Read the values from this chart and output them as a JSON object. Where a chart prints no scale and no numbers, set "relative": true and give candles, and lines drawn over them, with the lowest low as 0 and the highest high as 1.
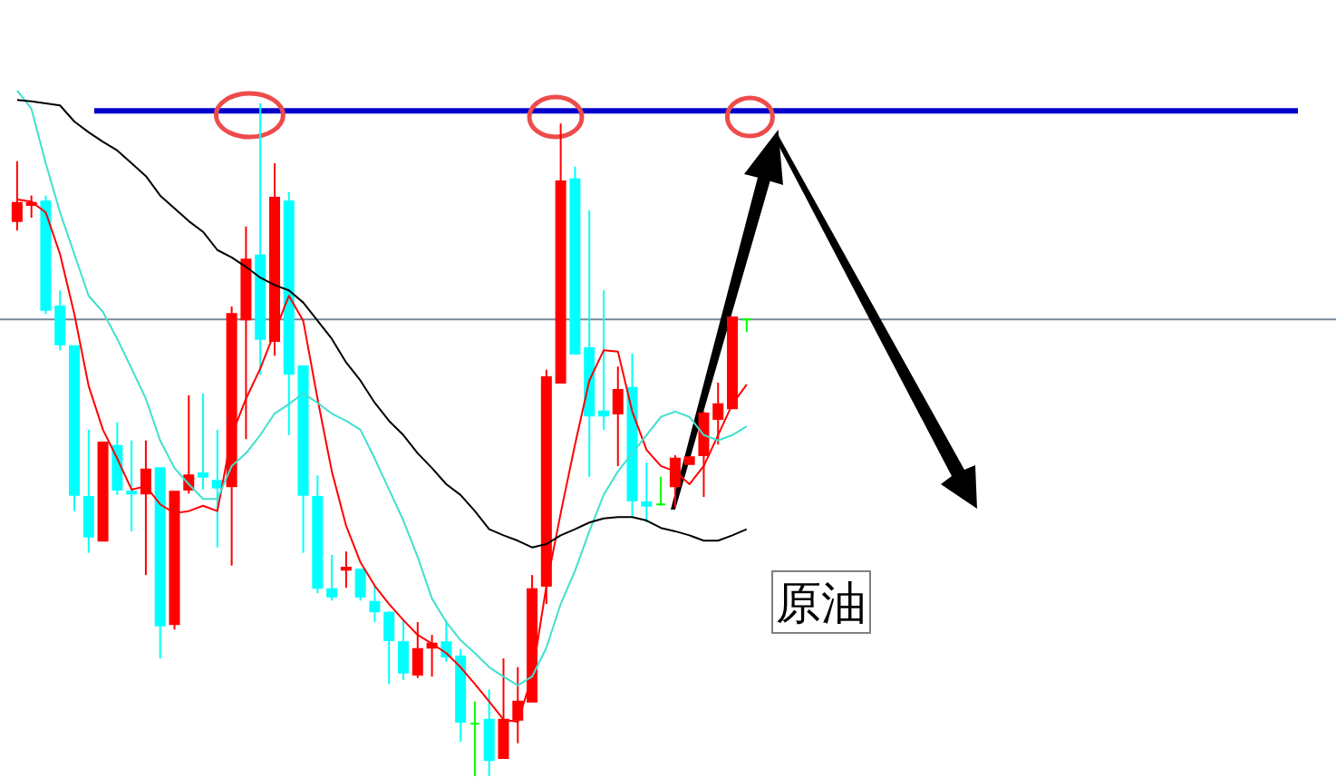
{
  "chart_data": {
    "type": "candlestick",
    "relative": true,
    "categories": [
      null,
      null,
      null,
      null,
      null,
      null,
      null,
      null,
      null,
      null,
      null,
      null,
      null,
      null,
      null,
      null,
      null,
      null,
      null,
      null,
      null,
      null,
      null,
      null,
      null,
      null,
      null,
      null,
      null,
      null,
      null,
      null,
      null,
      null,
      null,
      null,
      null,
      null,
      null,
      null,
      null,
      null,
      null,
      null,
      null,
      null,
      null,
      null,
      null,
      null,
      null,
      null
    ],
    "ohlc": [
      [
        0.825,
        0.914,
        0.811,
        0.852
      ],
      [
        0.849,
        0.863,
        0.83,
        0.852
      ],
      [
        0.854,
        0.863,
        0.687,
        0.693
      ],
      [
        0.698,
        0.722,
        0.633,
        0.642
      ],
      [
        0.639,
        0.639,
        0.394,
        0.418
      ],
      [
        0.415,
        0.515,
        0.332,
        0.356
      ],
      [
        0.35,
        0.496,
        0.35,
        0.496
      ],
      [
        0.491,
        0.526,
        0.418,
        0.426
      ],
      [
        0.423,
        0.499,
        0.364,
        0.42
      ],
      [
        0.42,
        0.499,
        0.299,
        0.456
      ],
      [
        0.458,
        0.458,
        0.175,
        0.224
      ],
      [
        0.226,
        0.423,
        0.218,
        0.423
      ],
      [
        0.426,
        0.566,
        0.42,
        0.447
      ],
      [
        0.45,
        0.569,
        0.426,
        0.445
      ],
      [
        0.439,
        0.515,
        0.34,
        0.429
      ],
      [
        0.431,
        0.698,
        0.313,
        0.687
      ],
      [
        0.679,
        0.817,
        0.501,
        0.768
      ],
      [
        0.774,
        1.0,
        0.596,
        0.65
      ],
      [
        0.647,
        0.911,
        0.625,
        0.86
      ],
      [
        0.854,
        0.868,
        0.507,
        0.598
      ],
      [
        0.609,
        0.609,
        0.332,
        0.418
      ],
      [
        0.415,
        0.447,
        0.272,
        0.28
      ],
      [
        0.278,
        0.329,
        0.261,
        0.267
      ],
      [
        0.307,
        0.334,
        0.28,
        0.31
      ],
      [
        0.307,
        0.307,
        0.261,
        0.267
      ],
      [
        0.259,
        0.283,
        0.229,
        0.245
      ],
      [
        0.243,
        0.245,
        0.137,
        0.202
      ],
      [
        0.199,
        0.232,
        0.143,
        0.154
      ],
      [
        0.151,
        0.229,
        0.146,
        0.189
      ],
      [
        0.191,
        0.21,
        0.148,
        0.197
      ],
      [
        0.199,
        0.232,
        0.17,
        0.178
      ],
      [
        0.178,
        0.189,
        0.051,
        0.081
      ],
      [
        0.078,
        0.111,
        0,
        0.078
      ],
      [
        0.084,
        0.129,
        0,
        0.024
      ],
      [
        0.027,
        0.175,
        0.027,
        0.084
      ],
      [
        0.084,
        0.162,
        0.049,
        0.111
      ],
      [
        0.111,
        0.299,
        0.111,
        0.278
      ],
      [
        0.283,
        0.604,
        0.256,
        0.593
      ],
      [
        0.585,
        0.97,
        0.585,
        0.884
      ],
      [
        0.887,
        0.906,
        0.628,
        0.628
      ],
      [
        0.636,
        0.841,
        0.445,
        0.536
      ],
      [
        0.542,
        0.722,
        0.515,
        0.536
      ],
      [
        0.539,
        0.609,
        0.461,
        0.574
      ],
      [
        0.577,
        0.628,
        0.385,
        0.41
      ],
      [
        0.407,
        0.466,
        0.377,
        0.402
      ],
      [
        0.404,
        0.445,
        0.402,
        0.404
      ],
      [
        0.431,
        0.477,
        0.399,
        0.472
      ],
      [
        0.464,
        0.474,
        0.464,
        0.474
      ],
      [
        0.477,
        0.542,
        0.415,
        0.539
      ],
      [
        0.531,
        0.585,
        0.493,
        0.553
      ],
      [
        0.547,
        0.682,
        0.547,
        0.682
      ],
      [
        0.679,
        0.679,
        0.66,
        0.679
      ]
    ],
    "colors": [
      "#ff0000",
      "#ff0000",
      "#00ffff",
      "#00ffff",
      "#00ffff",
      "#00ffff",
      "#ff0000",
      "#00ffff",
      "#00ffff",
      "#ff0000",
      "#00ffff",
      "#ff0000",
      "#ff0000",
      "#00ffff",
      "#00ffff",
      "#ff0000",
      "#ff0000",
      "#00ffff",
      "#ff0000",
      "#00ffff",
      "#00ffff",
      "#00ffff",
      "#00ffff",
      "#ff0000",
      "#00ffff",
      "#00ffff",
      "#00ffff",
      "#00ffff",
      "#ff0000",
      "#ff0000",
      "#00ffff",
      "#00ffff",
      "#00ff00",
      "#00ffff",
      "#ff0000",
      "#ff0000",
      "#ff0000",
      "#ff0000",
      "#ff0000",
      "#00ffff",
      "#00ffff",
      "#00ffff",
      "#ff0000",
      "#00ffff",
      "#00ffff",
      "#00ff00",
      "#ff0000",
      "#ff0000",
      "#ff0000",
      "#ff0000",
      "#ff0000",
      "#00ff00"
    ],
    "series": [
      {
        "type": "line",
        "color": "#ff0000",
        "values": [
          0.857,
          0.854,
          0.838,
          0.776,
          0.687,
          0.58,
          0.515,
          0.472,
          0.426,
          0.431,
          0.404,
          0.391,
          0.394,
          0.402,
          0.394,
          0.507,
          0.561,
          0.606,
          0.66,
          0.714,
          0.677,
          0.561,
          0.453,
          0.372,
          0.318,
          0.283,
          0.256,
          0.232,
          0.21,
          0.197,
          0.183,
          0.162,
          0.137,
          0.111,
          0.084,
          0.081,
          0.148,
          0.283,
          0.391,
          0.493,
          0.588,
          0.633,
          0.631,
          0.542,
          0.485,
          0.461,
          0.453,
          0.434,
          0.461,
          0.507,
          0.553,
          0.582
        ]
      },
      {
        "type": "line",
        "color": "#40e0d0",
        "values": [
          1.019,
          0.992,
          0.911,
          0.838,
          0.776,
          0.714,
          0.69,
          0.65,
          0.606,
          0.561,
          0.499,
          0.458,
          0.434,
          0.412,
          0.412,
          0.461,
          0.48,
          0.507,
          0.539,
          0.553,
          0.569,
          0.555,
          0.539,
          0.528,
          0.515,
          0.472,
          0.426,
          0.38,
          0.326,
          0.264,
          0.229,
          0.202,
          0.183,
          0.162,
          0.148,
          0.135,
          0.148,
          0.191,
          0.256,
          0.305,
          0.364,
          0.418,
          0.453,
          0.48,
          0.507,
          0.534,
          0.542,
          0.534,
          0.507,
          0.499,
          0.507,
          0.52
        ]
      },
      {
        "type": "line",
        "color": "#000000",
        "values": [
          1.005,
          1.003,
          1.0,
          0.997,
          0.973,
          0.957,
          0.943,
          0.93,
          0.911,
          0.892,
          0.863,
          0.844,
          0.825,
          0.809,
          0.782,
          0.771,
          0.757,
          0.741,
          0.73,
          0.722,
          0.704,
          0.677,
          0.65,
          0.615,
          0.588,
          0.555,
          0.528,
          0.507,
          0.48,
          0.458,
          0.434,
          0.418,
          0.394,
          0.367,
          0.358,
          0.35,
          0.34,
          0.345,
          0.358,
          0.367,
          0.377,
          0.383,
          0.385,
          0.385,
          0.38,
          0.369,
          0.364,
          0.358,
          0.35,
          0.35,
          0.358,
          0.367
        ]
      }
    ],
    "ref_lines": [
      {
        "axis": "y",
        "value": 0.989,
        "color": "#0000cc"
      },
      {
        "axis": "y",
        "value": 0.679,
        "color": "#778899"
      }
    ],
    "annotations": [
      "原油"
    ]
  }
}
